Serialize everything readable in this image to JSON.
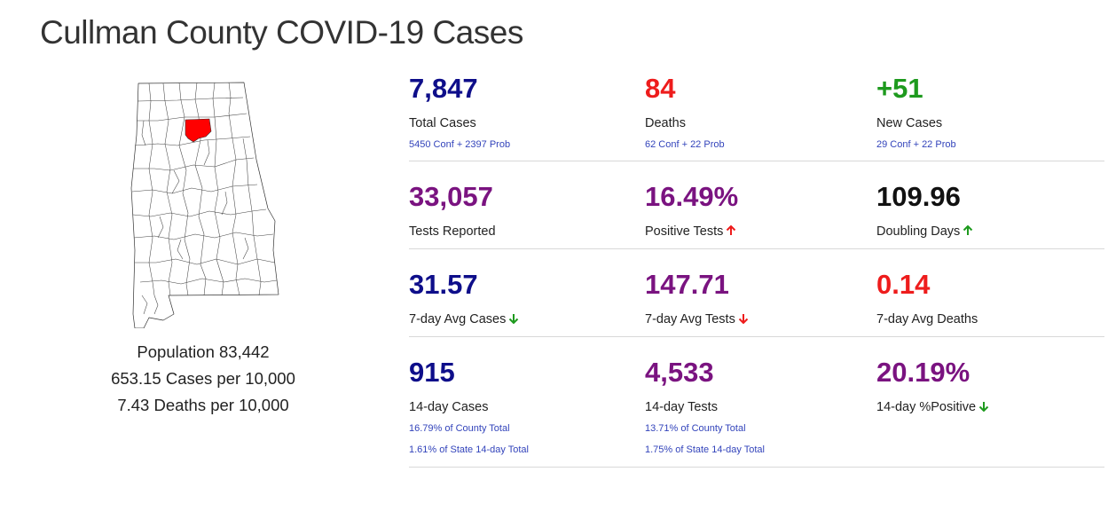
{
  "page": {
    "title": "Cullman County COVID-19 Cases"
  },
  "map": {
    "state": "Alabama",
    "highlight_color": "#ff0000"
  },
  "population": {
    "population": "Population 83,442",
    "cases_per": "653.15 Cases per 10,000",
    "deaths_per": "7.43 Deaths per 10,000"
  },
  "stats": {
    "total_cases": {
      "value": "7,847",
      "label": "Total Cases",
      "sub": "5450 Conf + 2397 Prob",
      "color": "#0e0e8a"
    },
    "deaths": {
      "value": "84",
      "label": "Deaths",
      "sub": "62 Conf + 22 Prob",
      "color": "#ee1c1c"
    },
    "new_cases": {
      "value": "+51",
      "label": "New Cases",
      "sub": "29 Conf + 22 Prob",
      "color": "#1e9a1e"
    },
    "tests_reported": {
      "value": "33,057",
      "label": "Tests Reported",
      "color": "#7a1380"
    },
    "positive_tests": {
      "value": "16.49%",
      "label": "Positive Tests",
      "trend": "arrow-up-icon",
      "trend_color": "#ee1c1c",
      "color": "#7a1380"
    },
    "doubling_days": {
      "value": "109.96",
      "label": "Doubling Days",
      "trend": "arrow-up-icon",
      "trend_color": "#1e9a1e",
      "color": "#111111"
    },
    "avg_cases_7day": {
      "value": "31.57",
      "label": "7-day Avg Cases",
      "trend": "arrow-down-icon",
      "trend_color": "#1e9a1e",
      "color": "#0e0e8a"
    },
    "avg_tests_7day": {
      "value": "147.71",
      "label": "7-day Avg Tests",
      "trend": "arrow-down-icon",
      "trend_color": "#ee1c1c",
      "color": "#7a1380"
    },
    "avg_deaths_7day": {
      "value": "0.14",
      "label": "7-day Avg Deaths",
      "color": "#ee1c1c"
    },
    "cases_14day": {
      "value": "915",
      "label": "14-day Cases",
      "sub1": "16.79% of County Total",
      "sub2": "1.61% of State 14-day Total",
      "color": "#0e0e8a"
    },
    "tests_14day": {
      "value": "4,533",
      "label": "14-day Tests",
      "sub1": "13.71% of County Total",
      "sub2": "1.75% of State 14-day Total",
      "color": "#7a1380"
    },
    "positive_14day": {
      "value": "20.19%",
      "label": "14-day %Positive",
      "trend": "arrow-down-icon",
      "trend_color": "#1e9a1e",
      "color": "#7a1380"
    }
  }
}
